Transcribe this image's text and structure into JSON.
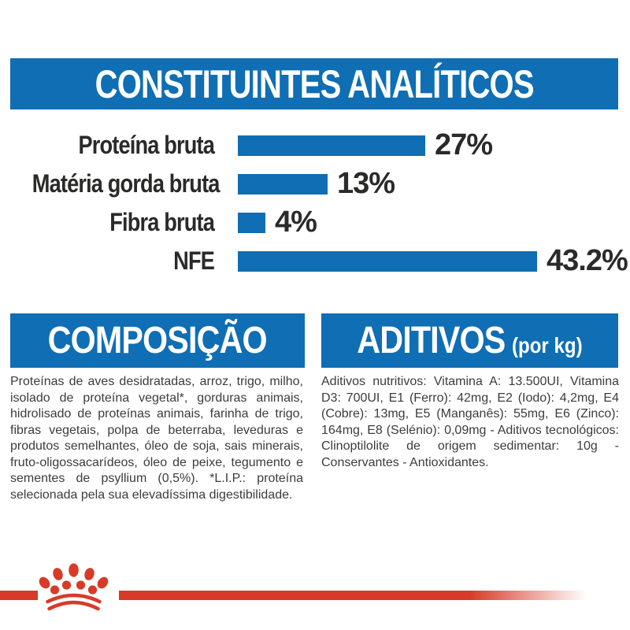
{
  "header": {
    "title": "CONSTITUINTES ANALÍTICOS"
  },
  "chart_data": {
    "type": "bar",
    "orientation": "horizontal",
    "title": "CONSTITUINTES ANALÍTICOS",
    "categories": [
      "Proteína bruta",
      "Matéria gorda bruta",
      "Fibra bruta",
      "NFE"
    ],
    "values": [
      27,
      13,
      4,
      43.2
    ],
    "value_labels": [
      "27%",
      "13%",
      "4%",
      "43.2%"
    ],
    "unit": "%",
    "xlim": [
      0,
      50
    ],
    "grid": false,
    "legend": false,
    "bar_color": "#0f6eb4"
  },
  "composition": {
    "title": "COMPOSIÇÃO",
    "body": "Proteínas de aves desidratadas, arroz, trigo, milho, isolado de proteína vegetal*, gorduras animais, hidrolisado de proteínas animais, farinha de trigo, fibras vegetais, polpa de beterraba, leveduras e produtos semelhantes, óleo de soja, sais minerais, fruto-oligossacarídeos, óleo de peixe, tegumento e sementes de psyllium (0,5%). *L.I.P.: proteína selecionada pela sua elevadíssima digestibilidade."
  },
  "additives": {
    "title": "ADITIVOS",
    "title_suffix": "(por kg)",
    "body": "Aditivos nutritivos: Vitamina A: 13.500UI, Vitamina D3: 700UI, E1 (Ferro): 42mg, E2 (Iodo): 4,2mg, E4 (Cobre): 13mg, E5 (Manganês): 55mg, E6 (Zinco): 164mg, E8 (Selénio): 0,09mg - Aditivos tecnológicos: Clinoptilolite de origem sedimentar: 10g - Conservantes - Antioxidantes."
  },
  "footer": {
    "brand_logo": "royal-canin-crown"
  },
  "colors": {
    "blue": "#0f6eb4",
    "red": "#d73b28",
    "heading_text": "#ffffff",
    "chart_text": "#2a2a29",
    "body_text": "#3c3c3b",
    "background": "#ffffff"
  }
}
